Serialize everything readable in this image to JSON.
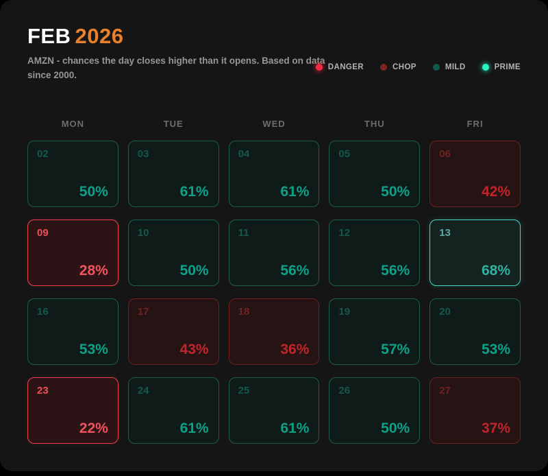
{
  "header": {
    "month": "FEB",
    "year": "2026",
    "subtitle": "AMZN - chances the day closes higher than it opens. Based on data since 2000."
  },
  "colors": {
    "title_year_accent": "#e8802c",
    "danger": "#fb2743",
    "chop": "#7e2523",
    "mild": "#0d5a4b",
    "prime": "#2bf3c1"
  },
  "legend": [
    {
      "label": "DANGER",
      "color": "#fb2743",
      "glow": true
    },
    {
      "label": "CHOP",
      "color": "#7e2523",
      "glow": false
    },
    {
      "label": "MILD",
      "color": "#0d5a4b",
      "glow": false
    },
    {
      "label": "PRIME",
      "color": "#2bf3c1",
      "glow": true
    }
  ],
  "calendar": {
    "weekdays": [
      "MON",
      "TUE",
      "WED",
      "THU",
      "FRI"
    ],
    "days": [
      {
        "day": "02",
        "pct": "50%",
        "category": "mild"
      },
      {
        "day": "03",
        "pct": "61%",
        "category": "mild"
      },
      {
        "day": "04",
        "pct": "61%",
        "category": "mild"
      },
      {
        "day": "05",
        "pct": "50%",
        "category": "mild"
      },
      {
        "day": "06",
        "pct": "42%",
        "category": "chop"
      },
      {
        "day": "09",
        "pct": "28%",
        "category": "danger"
      },
      {
        "day": "10",
        "pct": "50%",
        "category": "mild"
      },
      {
        "day": "11",
        "pct": "56%",
        "category": "mild"
      },
      {
        "day": "12",
        "pct": "56%",
        "category": "mild"
      },
      {
        "day": "13",
        "pct": "68%",
        "category": "prime"
      },
      {
        "day": "16",
        "pct": "53%",
        "category": "mild"
      },
      {
        "day": "17",
        "pct": "43%",
        "category": "chop"
      },
      {
        "day": "18",
        "pct": "36%",
        "category": "chop"
      },
      {
        "day": "19",
        "pct": "57%",
        "category": "mild"
      },
      {
        "day": "20",
        "pct": "53%",
        "category": "mild"
      },
      {
        "day": "23",
        "pct": "22%",
        "category": "danger"
      },
      {
        "day": "24",
        "pct": "61%",
        "category": "mild"
      },
      {
        "day": "25",
        "pct": "61%",
        "category": "mild"
      },
      {
        "day": "26",
        "pct": "50%",
        "category": "mild"
      },
      {
        "day": "27",
        "pct": "37%",
        "category": "chop"
      }
    ]
  }
}
